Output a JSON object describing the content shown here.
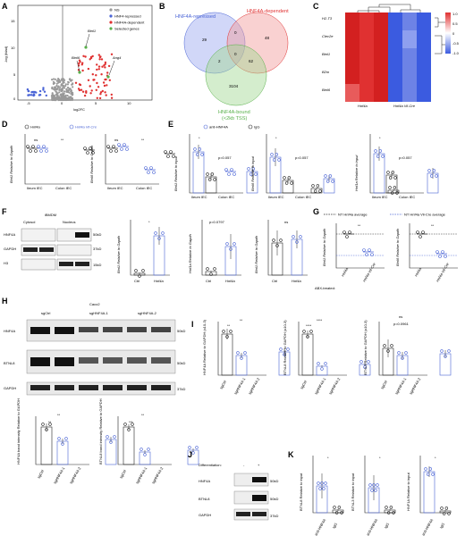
{
  "colors": {
    "blue": "#4a64d6",
    "red": "#e03131",
    "green": "#58b04a",
    "grey": "#999999",
    "black": "#222222"
  },
  "panels": {
    "A": "A",
    "B": "B",
    "C": "C",
    "D": "D",
    "E": "E",
    "F": "F",
    "G": "G",
    "H": "H",
    "I": "I",
    "J": "J",
    "K": "K"
  },
  "A": {
    "ylabel": "-log (fdad)",
    "xlabel": "log2FC",
    "xticks": [
      "-5",
      "0",
      "5",
      "10"
    ],
    "yticks": [
      "15",
      "10",
      "5",
      "0"
    ],
    "legend": [
      "NS",
      "HNF4-repressed",
      "HNF4A-dependent",
      "Selected genes"
    ],
    "genes": [
      "Btnl1",
      "Btnl6",
      "Ang4"
    ]
  },
  "B": {
    "sets": [
      "HNF4A-repressed",
      "HNF4A-dependent",
      "HNF4A-bound\n(<2kb TSS)"
    ],
    "set_bound_l1": "HNF4A-bound",
    "set_bound_l2": "(<2kb TSS)",
    "n": {
      "rep_only": "29",
      "rep_dep": "0",
      "dep_only": "48",
      "rep_bound": "2",
      "center": "0",
      "dep_bound": "62",
      "bound_only": "3104"
    }
  },
  "C": {
    "genes": [
      "H2-T3",
      "Clec2e",
      "Btnl1",
      "B2m",
      "Btnl6"
    ],
    "groups": [
      "Hnf4a",
      "Hnf4a Vil-Cre"
    ],
    "scale": [
      "1.0",
      "0.5",
      "0",
      "-0.5",
      "-1.0"
    ]
  },
  "D": {
    "legend": [
      "Hnf4a",
      "Hnf4a Vil-Cre"
    ],
    "left": {
      "ylabel": "Btnl1 Relative to Gapdh",
      "yticks": [
        "1.5",
        "1.0",
        "0.5",
        "0.0"
      ],
      "x": [
        "Ileum IEC",
        "Colon IEC"
      ],
      "sig": [
        "ns",
        "**"
      ]
    },
    "right": {
      "ylabel": "Btnl6 Relative to Gapdh",
      "yticks": [
        "2.0",
        "1.5",
        "1.0",
        "0.5",
        "0.0"
      ],
      "x": [
        "Ileum IEC",
        "Colon IEC"
      ],
      "sig": [
        "ns",
        "**"
      ]
    }
  },
  "E": {
    "legend": [
      "anti-HNF4A",
      "IgG"
    ],
    "p1": {
      "ylabel": "Btnl1 Relative to input",
      "x": [
        "Ileum IEC",
        "Colon IEC"
      ],
      "sig": [
        "*",
        "p=0.057"
      ],
      "yticks": [
        "0.008",
        "0.006",
        "0.004",
        "0.002",
        "0.000"
      ]
    },
    "p2": {
      "ylabel": "Btnl6 Relative to input",
      "x": [
        "Ileum IEC",
        "Colon IEC"
      ],
      "sig": [
        "*",
        "p=0.057"
      ],
      "yticks": [
        "0.008",
        "0.006",
        "0.004",
        "0.002",
        "0.000"
      ]
    },
    "p3": {
      "ylabel": "Hnf1a Relative to input",
      "x": [
        "Ileum IEC",
        "Colon IEC"
      ],
      "sig": [
        "*",
        "p=0.057"
      ],
      "yticks": [
        "0.20",
        "0.15",
        "0.10",
        "0.05",
        "0.00"
      ]
    }
  },
  "F": {
    "header": "iBMDM",
    "cols": [
      "Cytosol",
      "Nucleus"
    ],
    "rows": [
      "HNF4A",
      "GAPDH",
      "H3"
    ],
    "mw": [
      "50kD",
      "37kD",
      "15kD"
    ],
    "p1": {
      "ylabel": "Btnl1 Relative to Gapdh",
      "x": [
        "Ctrl",
        "Hnf4a"
      ],
      "sig": "*"
    },
    "p2": {
      "ylabel": "Hnf1a Relative to Gapdh",
      "x": [
        "Ctrl",
        "Hnf4a"
      ],
      "sig": "p=0.0797"
    },
    "p3": {
      "ylabel": "Btnl1 Relative to Gapdh",
      "x": [
        "Ctrl",
        "Hnf4a"
      ],
      "sig": "ns"
    }
  },
  "G": {
    "legend": [
      "NT Hnf4a average",
      "NT Hnf4a Vil-Cre average"
    ],
    "p1": {
      "ylabel": "Btnl1 Relative to Gapdh",
      "x": [
        "Hnf4a",
        "Hnf4a Vil-Cre"
      ],
      "sig": "**"
    },
    "p2": {
      "ylabel": "Btnl6 Relative to Gapdh",
      "x": [
        "Hnf4a",
        "Hnf4a Vil-Cre"
      ],
      "sig": "**"
    },
    "abx": "ABX-treated:"
  },
  "H": {
    "header": "Caco2",
    "cols": [
      "sgCtrl",
      "sgHNF4A-1",
      "sgHNF4A-2"
    ],
    "rows": [
      "HNF4A",
      "BTNL8",
      "GAPDH"
    ],
    "mw": [
      "50kD",
      "50kD",
      "37kD"
    ],
    "p1": {
      "ylabel": "HNF4A band intensity Relative to GAPDH",
      "x": [
        "sgCtrl",
        "sgHNF4A-1",
        "sgHNF4A-2"
      ],
      "sig": [
        "**",
        "**"
      ]
    },
    "p2": {
      "ylabel": "BTNL8 band intensity Relative to GAPDH",
      "x": [
        "sgCtrl",
        "sgHNF4A-1",
        "sgHNF4A-2"
      ],
      "sig": [
        "***",
        "**"
      ]
    }
  },
  "I": {
    "p1": {
      "ylabel": "HNF4A Relative to GAPDH (x10-3)",
      "x": [
        "sgCtrl",
        "sgHNF4A-1",
        "sgHNF4A-2"
      ],
      "sig": [
        "**",
        "**"
      ]
    },
    "p2": {
      "ylabel": "BTNL8 Relative to GAPDH (x10-3)",
      "x": [
        "sgCtrl",
        "sgHNF4A-1",
        "sgHNF4A-2"
      ],
      "sig": [
        "****",
        "****"
      ]
    },
    "p3": {
      "ylabel": "BTNL3 Relative to GAPDH (x10-3)",
      "x": [
        "sgCtrl",
        "sgHNF4A-1",
        "sgHNF4A-2"
      ],
      "sig": [
        "ns",
        "p=0.0961"
      ]
    }
  },
  "J": {
    "label": "Differentiation:",
    "cols": [
      "-",
      "+"
    ],
    "rows": [
      "HNF4A",
      "BTNL8",
      "GAPDH"
    ],
    "mw": [
      "50kD",
      "50kD",
      "37kD"
    ]
  },
  "K": {
    "p1": {
      "ylabel": "BTNL8 Relative to input",
      "x": [
        "anti-HNF4A",
        "IgG"
      ],
      "sig": "*"
    },
    "p2": {
      "ylabel": "BTNL3 Relative to input",
      "x": [
        "anti-HNF4A",
        "IgG"
      ],
      "sig": "*"
    },
    "p3": {
      "ylabel": "HNF1A Relative to input",
      "x": [
        "anti-HNF4A",
        "IgG"
      ],
      "sig": "*"
    }
  }
}
